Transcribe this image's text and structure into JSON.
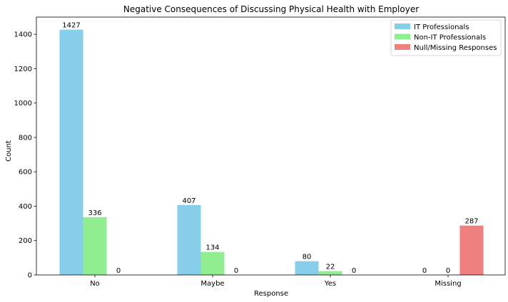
{
  "chart_data": {
    "type": "bar",
    "title": "Negative Consequences of Discussing Physical Health with Employer",
    "xlabel": "Response",
    "ylabel": "Count",
    "categories": [
      "No",
      "Maybe",
      "Yes",
      "Missing"
    ],
    "series": [
      {
        "name": "IT Professionals",
        "values": [
          1427,
          407,
          80,
          0
        ],
        "color": "#87CEEB"
      },
      {
        "name": "Non-IT Professionals",
        "values": [
          336,
          134,
          22,
          0
        ],
        "color": "#90EE90"
      },
      {
        "name": "Null/Missing Responses",
        "values": [
          0,
          0,
          0,
          287
        ],
        "color": "#F08080"
      }
    ],
    "ylim": [
      0,
      1500
    ],
    "yticks": [
      0,
      200,
      400,
      600,
      800,
      1000,
      1200,
      1400
    ],
    "legend": "top-right",
    "grid": false
  }
}
